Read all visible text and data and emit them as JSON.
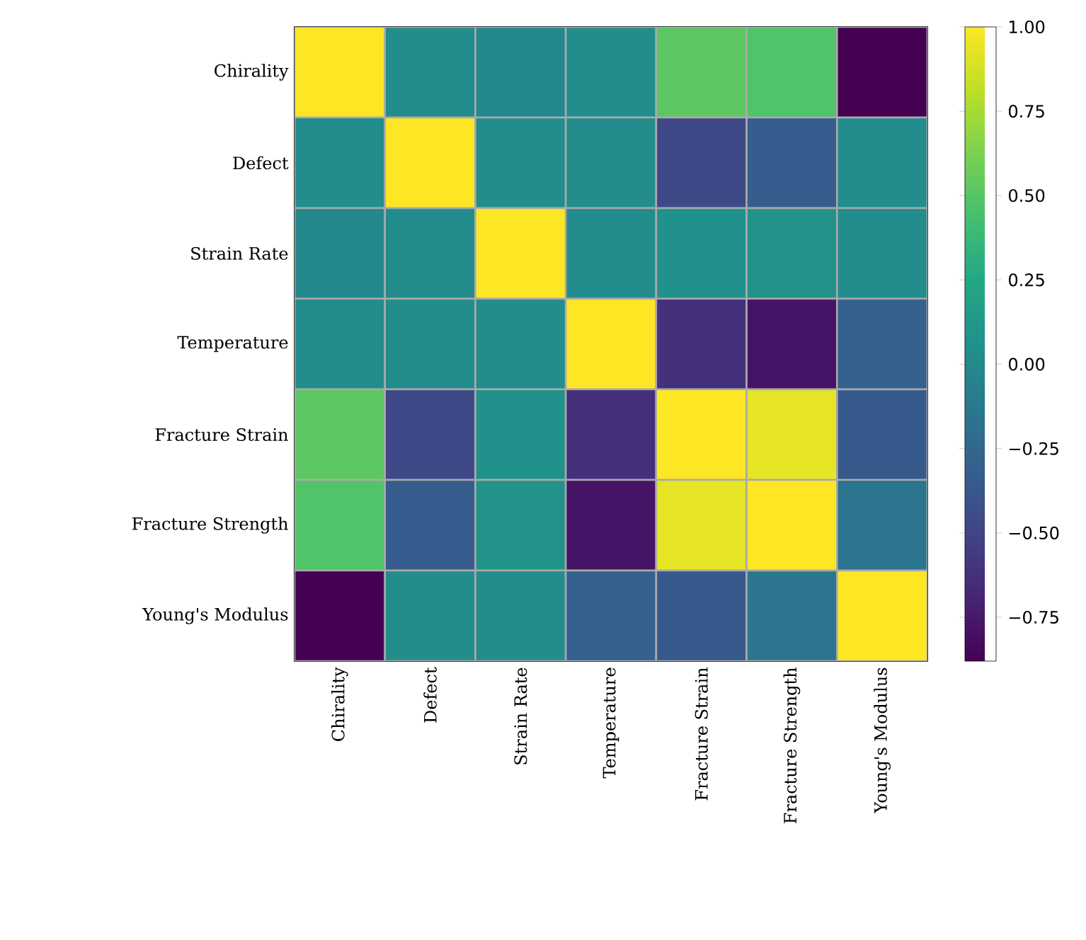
{
  "chart_data": {
    "type": "heatmap",
    "categories": [
      "Chirality",
      "Defect",
      "Strain Rate",
      "Temperature",
      "Fracture Strain",
      "Fracture Strength",
      "Young's Modulus"
    ],
    "y_categories": [
      "Chirality",
      "Defect",
      "Strain Rate",
      "Temperature",
      "Fracture Strain",
      "Fracture Strength",
      "Young's Modulus"
    ],
    "cells": [
      [
        1.0,
        0.02,
        0.0,
        0.02,
        0.52,
        0.48,
        -0.88
      ],
      [
        0.02,
        1.0,
        0.03,
        0.02,
        -0.47,
        -0.33,
        0.02
      ],
      [
        0.0,
        0.03,
        1.0,
        0.02,
        0.06,
        0.08,
        0.03
      ],
      [
        0.02,
        0.02,
        0.02,
        1.0,
        -0.62,
        -0.78,
        -0.3
      ],
      [
        0.52,
        -0.47,
        0.06,
        -0.62,
        1.0,
        0.93,
        -0.35
      ],
      [
        0.48,
        -0.33,
        0.08,
        -0.78,
        0.93,
        1.0,
        -0.15
      ],
      [
        -0.88,
        0.02,
        0.03,
        -0.3,
        -0.35,
        -0.15,
        1.0
      ]
    ],
    "clim": [
      -0.88,
      1.0
    ],
    "cticks": [
      {
        "value": -0.75,
        "label": "−0.75"
      },
      {
        "value": -0.5,
        "label": "−0.50"
      },
      {
        "value": -0.25,
        "label": "−0.25"
      },
      {
        "value": 0,
        "label": "0.00"
      },
      {
        "value": 0.25,
        "label": "0.25"
      },
      {
        "value": 0.5,
        "label": "0.50"
      },
      {
        "value": 0.75,
        "label": "0.75"
      },
      {
        "value": 1,
        "label": "1.00"
      }
    ]
  }
}
